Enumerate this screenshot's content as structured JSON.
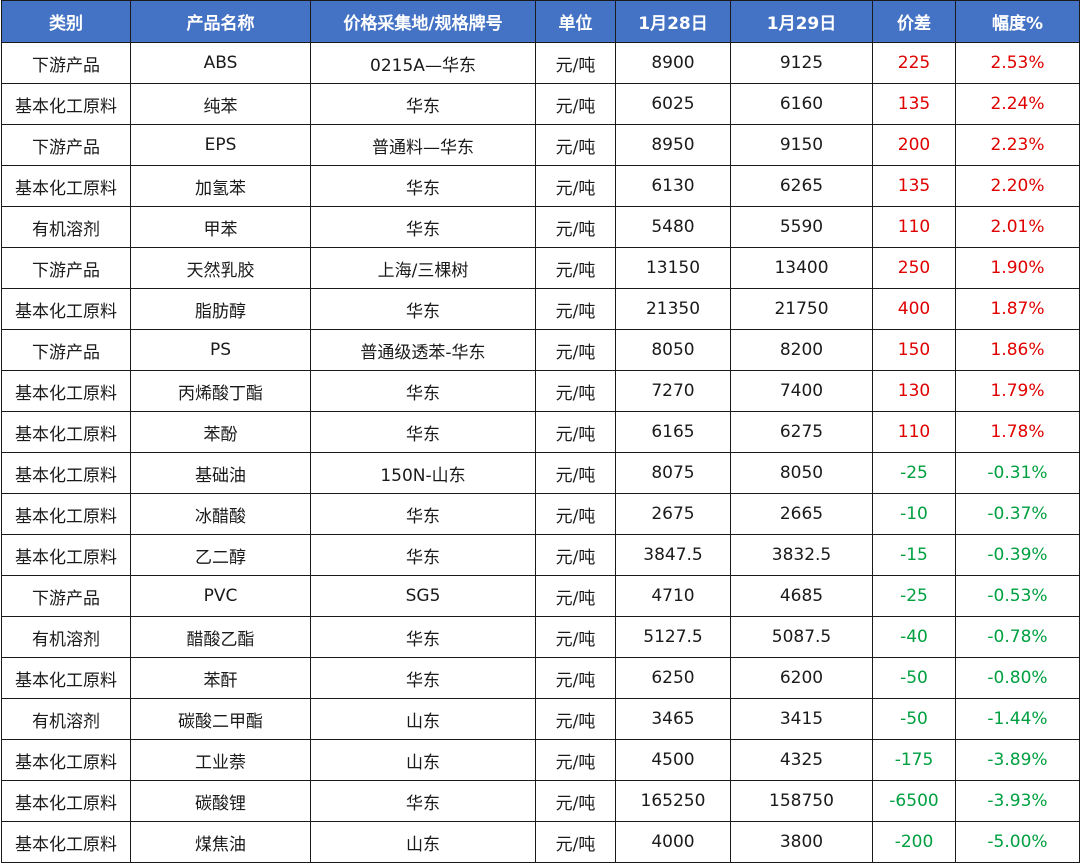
{
  "colors": {
    "header_bg": "#4472c4",
    "up": "#e00000",
    "down": "#00a040"
  },
  "headers": [
    "类别",
    "产品名称",
    "价格采集地/规格牌号",
    "单位",
    "1月28日",
    "1月29日",
    "价差",
    "幅度%"
  ],
  "rows": [
    {
      "category": "下游产品",
      "product": "ABS",
      "spec": "0215A—华东",
      "unit": "元/吨",
      "d28": "8900",
      "d29": "9125",
      "diff": "225",
      "pct": "2.53%"
    },
    {
      "category": "基本化工原料",
      "product": "纯苯",
      "spec": "华东",
      "unit": "元/吨",
      "d28": "6025",
      "d29": "6160",
      "diff": "135",
      "pct": "2.24%"
    },
    {
      "category": "下游产品",
      "product": "EPS",
      "spec": "普通料—华东",
      "unit": "元/吨",
      "d28": "8950",
      "d29": "9150",
      "diff": "200",
      "pct": "2.23%"
    },
    {
      "category": "基本化工原料",
      "product": "加氢苯",
      "spec": "华东",
      "unit": "元/吨",
      "d28": "6130",
      "d29": "6265",
      "diff": "135",
      "pct": "2.20%"
    },
    {
      "category": "有机溶剂",
      "product": "甲苯",
      "spec": "华东",
      "unit": "元/吨",
      "d28": "5480",
      "d29": "5590",
      "diff": "110",
      "pct": "2.01%"
    },
    {
      "category": "下游产品",
      "product": "天然乳胶",
      "spec": "上海/三棵树",
      "unit": "元/吨",
      "d28": "13150",
      "d29": "13400",
      "diff": "250",
      "pct": "1.90%"
    },
    {
      "category": "基本化工原料",
      "product": "脂肪醇",
      "spec": "华东",
      "unit": "元/吨",
      "d28": "21350",
      "d29": "21750",
      "diff": "400",
      "pct": "1.87%"
    },
    {
      "category": "下游产品",
      "product": "PS",
      "spec": "普通级透苯-华东",
      "unit": "元/吨",
      "d28": "8050",
      "d29": "8200",
      "diff": "150",
      "pct": "1.86%"
    },
    {
      "category": "基本化工原料",
      "product": "丙烯酸丁酯",
      "spec": "华东",
      "unit": "元/吨",
      "d28": "7270",
      "d29": "7400",
      "diff": "130",
      "pct": "1.79%"
    },
    {
      "category": "基本化工原料",
      "product": "苯酚",
      "spec": "华东",
      "unit": "元/吨",
      "d28": "6165",
      "d29": "6275",
      "diff": "110",
      "pct": "1.78%"
    },
    {
      "category": "基本化工原料",
      "product": "基础油",
      "spec": "150N-山东",
      "unit": "元/吨",
      "d28": "8075",
      "d29": "8050",
      "diff": "-25",
      "pct": "-0.31%"
    },
    {
      "category": "基本化工原料",
      "product": "冰醋酸",
      "spec": "华东",
      "unit": "元/吨",
      "d28": "2675",
      "d29": "2665",
      "diff": "-10",
      "pct": "-0.37%"
    },
    {
      "category": "基本化工原料",
      "product": "乙二醇",
      "spec": "华东",
      "unit": "元/吨",
      "d28": "3847.5",
      "d29": "3832.5",
      "diff": "-15",
      "pct": "-0.39%"
    },
    {
      "category": "下游产品",
      "product": "PVC",
      "spec": "SG5",
      "unit": "元/吨",
      "d28": "4710",
      "d29": "4685",
      "diff": "-25",
      "pct": "-0.53%"
    },
    {
      "category": "有机溶剂",
      "product": "醋酸乙酯",
      "spec": "华东",
      "unit": "元/吨",
      "d28": "5127.5",
      "d29": "5087.5",
      "diff": "-40",
      "pct": "-0.78%"
    },
    {
      "category": "基本化工原料",
      "product": "苯酐",
      "spec": "华东",
      "unit": "元/吨",
      "d28": "6250",
      "d29": "6200",
      "diff": "-50",
      "pct": "-0.80%"
    },
    {
      "category": "有机溶剂",
      "product": "碳酸二甲酯",
      "spec": "山东",
      "unit": "元/吨",
      "d28": "3465",
      "d29": "3415",
      "diff": "-50",
      "pct": "-1.44%"
    },
    {
      "category": "基本化工原料",
      "product": "工业萘",
      "spec": "山东",
      "unit": "元/吨",
      "d28": "4500",
      "d29": "4325",
      "diff": "-175",
      "pct": "-3.89%"
    },
    {
      "category": "基本化工原料",
      "product": "碳酸锂",
      "spec": "华东",
      "unit": "元/吨",
      "d28": "165250",
      "d29": "158750",
      "diff": "-6500",
      "pct": "-3.93%"
    },
    {
      "category": "基本化工原料",
      "product": "煤焦油",
      "spec": "山东",
      "unit": "元/吨",
      "d28": "4000",
      "d29": "3800",
      "diff": "-200",
      "pct": "-5.00%"
    }
  ]
}
